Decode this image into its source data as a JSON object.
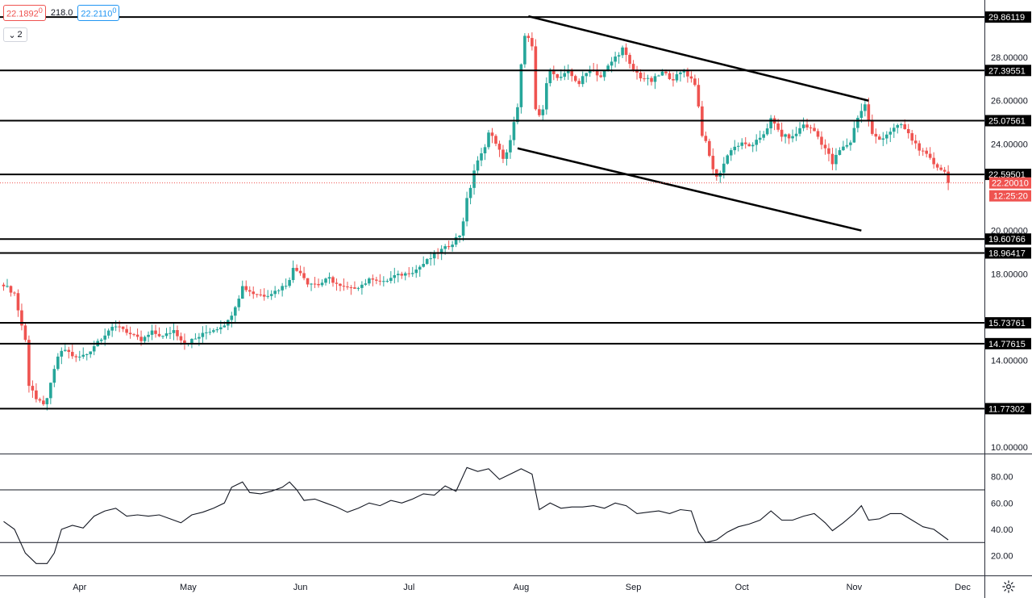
{
  "header": {
    "bid": "22.1892",
    "bid_sup": "0",
    "spread": "218.0",
    "ask": "22.2110",
    "ask_sup": "0",
    "panes_count": "2"
  },
  "colors": {
    "up": "#26a69a",
    "down": "#ef5350",
    "level": "#000000",
    "price_tag": "#ef5350",
    "background": "#ffffff"
  },
  "icons": [
    "collapse-chevron-icon",
    "gear-icon"
  ],
  "chart_data": [
    {
      "type": "candlestick",
      "title": "",
      "ylim": [
        10,
        30.5
      ],
      "y_ticks": [
        "28.00000",
        "26.00000",
        "24.00000",
        "20.00000",
        "18.00000",
        "14.00000",
        "10.00000"
      ],
      "x_ticks": [
        "Apr",
        "May",
        "Jun",
        "Jul",
        "Aug",
        "Sep",
        "Oct",
        "Nov",
        "Dec"
      ],
      "x_tick_days": [
        21,
        51,
        82,
        112,
        143,
        174,
        204,
        235,
        265
      ],
      "horizontal_levels": [
        {
          "value": 29.86119,
          "label": "29.86119"
        },
        {
          "value": 27.39551,
          "label": "27.39551"
        },
        {
          "value": 25.07561,
          "label": "25.07561"
        },
        {
          "value": 22.59501,
          "label": "22.59501"
        },
        {
          "value": 19.60766,
          "label": "19.60766"
        },
        {
          "value": 18.96417,
          "label": "18.96417"
        },
        {
          "value": 15.73761,
          "label": "15.73761"
        },
        {
          "value": 14.77615,
          "label": "14.77615"
        },
        {
          "value": 11.77302,
          "label": "11.77302"
        }
      ],
      "trendlines": [
        {
          "from": {
            "day": 145,
            "value": 29.9
          },
          "to": {
            "day": 239,
            "value": 26.0
          }
        },
        {
          "from": {
            "day": 142,
            "value": 23.8
          },
          "to": {
            "day": 237,
            "value": 20.0
          }
        }
      ],
      "last_price": {
        "value": 22.2001,
        "label": "22.20010",
        "countdown": "12:25:20"
      },
      "closes": [
        {
          "day": 0,
          "close": 17.5
        },
        {
          "day": 3,
          "close": 17.1
        },
        {
          "day": 6,
          "close": 14.9
        },
        {
          "day": 7,
          "close": 13.1
        },
        {
          "day": 9,
          "close": 12.2
        },
        {
          "day": 11,
          "close": 11.9
        },
        {
          "day": 13,
          "close": 12.8
        },
        {
          "day": 15,
          "close": 14.2
        },
        {
          "day": 17,
          "close": 14.5
        },
        {
          "day": 20,
          "close": 14.1
        },
        {
          "day": 23,
          "close": 14.3
        },
        {
          "day": 26,
          "close": 14.9
        },
        {
          "day": 29,
          "close": 15.4
        },
        {
          "day": 32,
          "close": 15.6
        },
        {
          "day": 35,
          "close": 15.2
        },
        {
          "day": 38,
          "close": 14.9
        },
        {
          "day": 41,
          "close": 15.3
        },
        {
          "day": 44,
          "close": 15.1
        },
        {
          "day": 47,
          "close": 15.4
        },
        {
          "day": 50,
          "close": 14.8
        },
        {
          "day": 53,
          "close": 15.0
        },
        {
          "day": 56,
          "close": 15.3
        },
        {
          "day": 59,
          "close": 15.5
        },
        {
          "day": 62,
          "close": 15.8
        },
        {
          "day": 64,
          "close": 16.6
        },
        {
          "day": 66,
          "close": 17.4
        },
        {
          "day": 69,
          "close": 17.1
        },
        {
          "day": 72,
          "close": 17.0
        },
        {
          "day": 75,
          "close": 17.2
        },
        {
          "day": 78,
          "close": 17.5
        },
        {
          "day": 80,
          "close": 18.2
        },
        {
          "day": 82,
          "close": 18.1
        },
        {
          "day": 84,
          "close": 17.6
        },
        {
          "day": 87,
          "close": 17.5
        },
        {
          "day": 90,
          "close": 17.8
        },
        {
          "day": 93,
          "close": 17.4
        },
        {
          "day": 96,
          "close": 17.3
        },
        {
          "day": 99,
          "close": 17.5
        },
        {
          "day": 102,
          "close": 17.8
        },
        {
          "day": 105,
          "close": 17.6
        },
        {
          "day": 108,
          "close": 17.9
        },
        {
          "day": 111,
          "close": 18.0
        },
        {
          "day": 114,
          "close": 18.2
        },
        {
          "day": 117,
          "close": 18.6
        },
        {
          "day": 120,
          "close": 19.0
        },
        {
          "day": 123,
          "close": 19.3
        },
        {
          "day": 126,
          "close": 19.8
        },
        {
          "day": 128,
          "close": 21.3
        },
        {
          "day": 130,
          "close": 22.8
        },
        {
          "day": 132,
          "close": 23.5
        },
        {
          "day": 134,
          "close": 24.5
        },
        {
          "day": 136,
          "close": 24.1
        },
        {
          "day": 138,
          "close": 23.2
        },
        {
          "day": 140,
          "close": 24.2
        },
        {
          "day": 142,
          "close": 25.6
        },
        {
          "day": 143,
          "close": 27.4
        },
        {
          "day": 144,
          "close": 29.3
        },
        {
          "day": 146,
          "close": 28.4
        },
        {
          "day": 147,
          "close": 25.0
        },
        {
          "day": 149,
          "close": 25.6
        },
        {
          "day": 151,
          "close": 27.6
        },
        {
          "day": 153,
          "close": 27.0
        },
        {
          "day": 156,
          "close": 27.3
        },
        {
          "day": 159,
          "close": 26.8
        },
        {
          "day": 162,
          "close": 27.5
        },
        {
          "day": 165,
          "close": 27.1
        },
        {
          "day": 168,
          "close": 27.8
        },
        {
          "day": 171,
          "close": 28.4
        },
        {
          "day": 173,
          "close": 27.6
        },
        {
          "day": 176,
          "close": 27.1
        },
        {
          "day": 179,
          "close": 26.9
        },
        {
          "day": 182,
          "close": 27.3
        },
        {
          "day": 185,
          "close": 27.0
        },
        {
          "day": 188,
          "close": 27.4
        },
        {
          "day": 191,
          "close": 26.8
        },
        {
          "day": 193,
          "close": 24.6
        },
        {
          "day": 195,
          "close": 23.4
        },
        {
          "day": 197,
          "close": 22.4
        },
        {
          "day": 199,
          "close": 23.1
        },
        {
          "day": 201,
          "close": 23.8
        },
        {
          "day": 204,
          "close": 24.0
        },
        {
          "day": 207,
          "close": 23.9
        },
        {
          "day": 210,
          "close": 24.5
        },
        {
          "day": 212,
          "close": 25.1
        },
        {
          "day": 215,
          "close": 24.4
        },
        {
          "day": 218,
          "close": 24.3
        },
        {
          "day": 221,
          "close": 24.9
        },
        {
          "day": 224,
          "close": 24.6
        },
        {
          "day": 227,
          "close": 23.8
        },
        {
          "day": 229,
          "close": 23.1
        },
        {
          "day": 231,
          "close": 23.7
        },
        {
          "day": 234,
          "close": 24.1
        },
        {
          "day": 236,
          "close": 25.3
        },
        {
          "day": 238,
          "close": 25.8
        },
        {
          "day": 240,
          "close": 24.4
        },
        {
          "day": 242,
          "close": 24.2
        },
        {
          "day": 245,
          "close": 24.6
        },
        {
          "day": 248,
          "close": 24.9
        },
        {
          "day": 251,
          "close": 24.2
        },
        {
          "day": 254,
          "close": 23.6
        },
        {
          "day": 257,
          "close": 23.1
        },
        {
          "day": 260,
          "close": 22.7
        },
        {
          "day": 261,
          "close": 22.2
        }
      ]
    },
    {
      "type": "line",
      "title": "",
      "ylim": [
        10,
        95
      ],
      "y_ticks": [
        "80.00",
        "60.00",
        "40.00",
        "20.00"
      ],
      "reference_lines": [
        70,
        30
      ],
      "series": [
        {
          "values": [
            {
              "day": 0,
              "value": 46
            },
            {
              "day": 3,
              "value": 40
            },
            {
              "day": 6,
              "value": 22
            },
            {
              "day": 9,
              "value": 14
            },
            {
              "day": 12,
              "value": 14
            },
            {
              "day": 14,
              "value": 22
            },
            {
              "day": 16,
              "value": 40
            },
            {
              "day": 19,
              "value": 43
            },
            {
              "day": 22,
              "value": 41
            },
            {
              "day": 25,
              "value": 50
            },
            {
              "day": 28,
              "value": 54
            },
            {
              "day": 31,
              "value": 56
            },
            {
              "day": 34,
              "value": 50
            },
            {
              "day": 37,
              "value": 51
            },
            {
              "day": 40,
              "value": 50
            },
            {
              "day": 43,
              "value": 51
            },
            {
              "day": 46,
              "value": 48
            },
            {
              "day": 49,
              "value": 45
            },
            {
              "day": 52,
              "value": 51
            },
            {
              "day": 55,
              "value": 53
            },
            {
              "day": 58,
              "value": 56
            },
            {
              "day": 61,
              "value": 60
            },
            {
              "day": 63,
              "value": 72
            },
            {
              "day": 66,
              "value": 76
            },
            {
              "day": 68,
              "value": 68
            },
            {
              "day": 71,
              "value": 67
            },
            {
              "day": 74,
              "value": 69
            },
            {
              "day": 77,
              "value": 72
            },
            {
              "day": 79,
              "value": 76
            },
            {
              "day": 81,
              "value": 70
            },
            {
              "day": 83,
              "value": 62
            },
            {
              "day": 86,
              "value": 63
            },
            {
              "day": 89,
              "value": 60
            },
            {
              "day": 92,
              "value": 57
            },
            {
              "day": 95,
              "value": 53
            },
            {
              "day": 98,
              "value": 56
            },
            {
              "day": 101,
              "value": 60
            },
            {
              "day": 104,
              "value": 58
            },
            {
              "day": 107,
              "value": 62
            },
            {
              "day": 110,
              "value": 60
            },
            {
              "day": 113,
              "value": 63
            },
            {
              "day": 116,
              "value": 67
            },
            {
              "day": 119,
              "value": 66
            },
            {
              "day": 122,
              "value": 73
            },
            {
              "day": 125,
              "value": 69
            },
            {
              "day": 128,
              "value": 87
            },
            {
              "day": 131,
              "value": 84
            },
            {
              "day": 134,
              "value": 86
            },
            {
              "day": 137,
              "value": 78
            },
            {
              "day": 140,
              "value": 82
            },
            {
              "day": 143,
              "value": 86
            },
            {
              "day": 146,
              "value": 82
            },
            {
              "day": 148,
              "value": 55
            },
            {
              "day": 151,
              "value": 60
            },
            {
              "day": 154,
              "value": 56
            },
            {
              "day": 157,
              "value": 57
            },
            {
              "day": 160,
              "value": 57
            },
            {
              "day": 163,
              "value": 58
            },
            {
              "day": 166,
              "value": 56
            },
            {
              "day": 169,
              "value": 60
            },
            {
              "day": 172,
              "value": 58
            },
            {
              "day": 175,
              "value": 52
            },
            {
              "day": 178,
              "value": 53
            },
            {
              "day": 181,
              "value": 54
            },
            {
              "day": 184,
              "value": 52
            },
            {
              "day": 187,
              "value": 55
            },
            {
              "day": 190,
              "value": 54
            },
            {
              "day": 192,
              "value": 38
            },
            {
              "day": 194,
              "value": 30
            },
            {
              "day": 197,
              "value": 32
            },
            {
              "day": 200,
              "value": 38
            },
            {
              "day": 203,
              "value": 42
            },
            {
              "day": 206,
              "value": 44
            },
            {
              "day": 209,
              "value": 47
            },
            {
              "day": 212,
              "value": 54
            },
            {
              "day": 215,
              "value": 47
            },
            {
              "day": 218,
              "value": 47
            },
            {
              "day": 221,
              "value": 50
            },
            {
              "day": 224,
              "value": 52
            },
            {
              "day": 227,
              "value": 45
            },
            {
              "day": 229,
              "value": 39
            },
            {
              "day": 232,
              "value": 45
            },
            {
              "day": 235,
              "value": 52
            },
            {
              "day": 237,
              "value": 58
            },
            {
              "day": 239,
              "value": 47
            },
            {
              "day": 242,
              "value": 48
            },
            {
              "day": 245,
              "value": 52
            },
            {
              "day": 248,
              "value": 52
            },
            {
              "day": 251,
              "value": 47
            },
            {
              "day": 254,
              "value": 42
            },
            {
              "day": 257,
              "value": 40
            },
            {
              "day": 261,
              "value": 32
            }
          ]
        }
      ]
    }
  ]
}
